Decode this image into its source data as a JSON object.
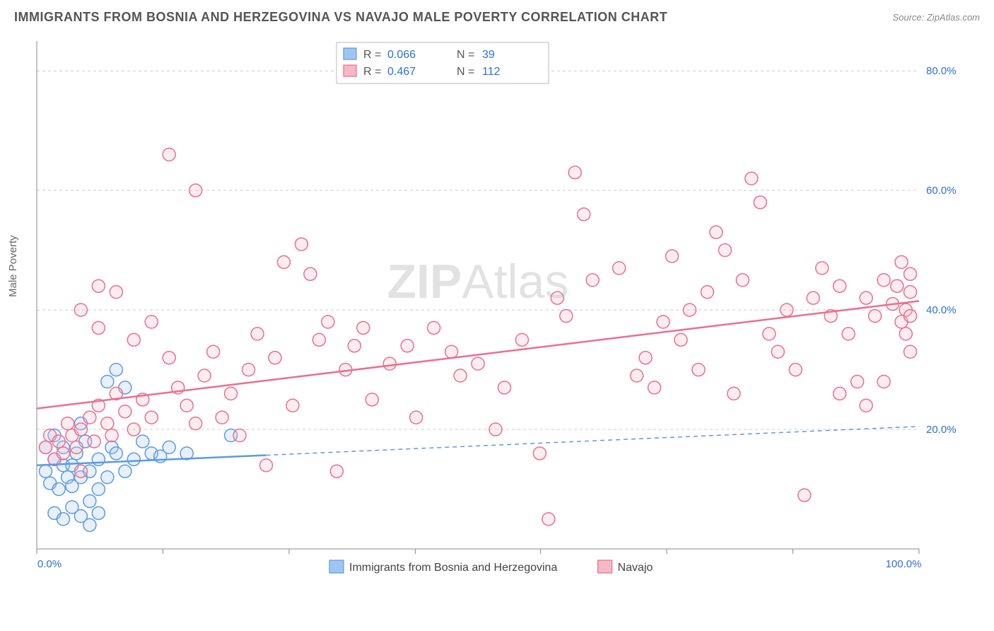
{
  "title": "IMMIGRANTS FROM BOSNIA AND HERZEGOVINA VS NAVAJO MALE POVERTY CORRELATION CHART",
  "source_label": "Source: ZipAtlas.com",
  "ylabel": "Male Poverty",
  "watermark_a": "ZIP",
  "watermark_b": "Atlas",
  "chart": {
    "type": "scatter",
    "xlim": [
      0,
      100
    ],
    "ylim": [
      0,
      85
    ],
    "x_ticks": [
      0,
      14.3,
      28.6,
      42.9,
      57.1,
      71.4,
      85.7,
      100
    ],
    "x_tick_labels_shown": {
      "0": "0.0%",
      "100": "100.0%"
    },
    "y_ticks": [
      20,
      40,
      60,
      80
    ],
    "y_tick_labels": [
      "20.0%",
      "40.0%",
      "60.0%",
      "80.0%"
    ],
    "background_color": "#ffffff",
    "grid_color": "#cccccc",
    "axis_color": "#888888",
    "marker_radius": 9,
    "series": [
      {
        "key": "a",
        "label": "Immigrants from Bosnia and Herzegovina",
        "color_fill": "#9fc5f3",
        "color_stroke": "#5a9be2",
        "R": "0.066",
        "N": "39",
        "trend": {
          "y_at_x0": 14.0,
          "y_at_x100": 20.5,
          "solid_until_x": 26
        },
        "points": [
          [
            1,
            13
          ],
          [
            1.5,
            11
          ],
          [
            1,
            17
          ],
          [
            2,
            15
          ],
          [
            2.5,
            10
          ],
          [
            2,
            19
          ],
          [
            3,
            14
          ],
          [
            3.5,
            12
          ],
          [
            3,
            17
          ],
          [
            4,
            10.5
          ],
          [
            4,
            14
          ],
          [
            4.5,
            16
          ],
          [
            5,
            12
          ],
          [
            5.5,
            18
          ],
          [
            2,
            6
          ],
          [
            3,
            5
          ],
          [
            4,
            7
          ],
          [
            5,
            5.5
          ],
          [
            6,
            4
          ],
          [
            7,
            6
          ],
          [
            6,
            13
          ],
          [
            7,
            15
          ],
          [
            8,
            12
          ],
          [
            8.5,
            17
          ],
          [
            9,
            16
          ],
          [
            10,
            13
          ],
          [
            11,
            15
          ],
          [
            12,
            18
          ],
          [
            13,
            16
          ],
          [
            14,
            15.5
          ],
          [
            15,
            17
          ],
          [
            17,
            16
          ],
          [
            8,
            28
          ],
          [
            9,
            30
          ],
          [
            10,
            27
          ],
          [
            7,
            10
          ],
          [
            6,
            8
          ],
          [
            22,
            19
          ],
          [
            5,
            21
          ]
        ]
      },
      {
        "key": "b",
        "label": "Navajo",
        "color_fill": "#f6b8c4",
        "color_stroke": "#ea6f8d",
        "R": "0.467",
        "N": "112",
        "trend": {
          "y_at_x0": 23.5,
          "y_at_x100": 41.5,
          "solid_until_x": 100
        },
        "points": [
          [
            1,
            17
          ],
          [
            1.5,
            19
          ],
          [
            2,
            15
          ],
          [
            2.5,
            18
          ],
          [
            3,
            16
          ],
          [
            3.5,
            21
          ],
          [
            4,
            19
          ],
          [
            4.5,
            17
          ],
          [
            5,
            20
          ],
          [
            5,
            13
          ],
          [
            6,
            22
          ],
          [
            6.5,
            18
          ],
          [
            7,
            24
          ],
          [
            8,
            21
          ],
          [
            8.5,
            19
          ],
          [
            9,
            26
          ],
          [
            10,
            23
          ],
          [
            11,
            20
          ],
          [
            12,
            25
          ],
          [
            13,
            22
          ],
          [
            7,
            37
          ],
          [
            9,
            43
          ],
          [
            11,
            35
          ],
          [
            13,
            38
          ],
          [
            15,
            32
          ],
          [
            16,
            27
          ],
          [
            17,
            24
          ],
          [
            18,
            21
          ],
          [
            19,
            29
          ],
          [
            20,
            33
          ],
          [
            5,
            40
          ],
          [
            7,
            44
          ],
          [
            15,
            66
          ],
          [
            18,
            60
          ],
          [
            21,
            22
          ],
          [
            22,
            26
          ],
          [
            23,
            19
          ],
          [
            24,
            30
          ],
          [
            25,
            36
          ],
          [
            26,
            14
          ],
          [
            27,
            32
          ],
          [
            28,
            48
          ],
          [
            29,
            24
          ],
          [
            30,
            51
          ],
          [
            31,
            46
          ],
          [
            32,
            35
          ],
          [
            33,
            38
          ],
          [
            34,
            13
          ],
          [
            35,
            30
          ],
          [
            36,
            34
          ],
          [
            37,
            37
          ],
          [
            38,
            25
          ],
          [
            40,
            31
          ],
          [
            42,
            34
          ],
          [
            43,
            22
          ],
          [
            45,
            37
          ],
          [
            47,
            33
          ],
          [
            48,
            29
          ],
          [
            50,
            31
          ],
          [
            52,
            20
          ],
          [
            53,
            27
          ],
          [
            55,
            35
          ],
          [
            57,
            16
          ],
          [
            58,
            5
          ],
          [
            59,
            42
          ],
          [
            60,
            39
          ],
          [
            61,
            63
          ],
          [
            62,
            56
          ],
          [
            63,
            45
          ],
          [
            66,
            47
          ],
          [
            68,
            29
          ],
          [
            69,
            32
          ],
          [
            70,
            27
          ],
          [
            71,
            38
          ],
          [
            72,
            49
          ],
          [
            73,
            35
          ],
          [
            74,
            40
          ],
          [
            75,
            30
          ],
          [
            76,
            43
          ],
          [
            77,
            53
          ],
          [
            78,
            50
          ],
          [
            79,
            26
          ],
          [
            80,
            45
          ],
          [
            81,
            62
          ],
          [
            82,
            58
          ],
          [
            83,
            36
          ],
          [
            84,
            33
          ],
          [
            85,
            40
          ],
          [
            86,
            30
          ],
          [
            87,
            9
          ],
          [
            88,
            42
          ],
          [
            89,
            47
          ],
          [
            90,
            39
          ],
          [
            91,
            44
          ],
          [
            92,
            36
          ],
          [
            93,
            28
          ],
          [
            94,
            42
          ],
          [
            95,
            39
          ],
          [
            96,
            45
          ],
          [
            97,
            41
          ],
          [
            97.5,
            44
          ],
          [
            98,
            38
          ],
          [
            98,
            48
          ],
          [
            98.5,
            40
          ],
          [
            98.5,
            36
          ],
          [
            99,
            43
          ],
          [
            99,
            46
          ],
          [
            99,
            39
          ],
          [
            99,
            33
          ],
          [
            94,
            24
          ],
          [
            96,
            28
          ],
          [
            91,
            26
          ]
        ]
      }
    ]
  },
  "rn_legend": {
    "box_stroke": "#bbbbbb",
    "entries": [
      {
        "swatch_fill": "#9fc5f3",
        "swatch_stroke": "#5a9be2",
        "R_label": "R =",
        "R_val": "0.066",
        "N_label": "N =",
        "N_val": "39"
      },
      {
        "swatch_fill": "#f6b8c4",
        "swatch_stroke": "#ea6f8d",
        "R_label": "R =",
        "R_val": "0.467",
        "N_label": "N =",
        "N_val": "112"
      }
    ]
  },
  "bottom_legend": {
    "entries": [
      {
        "swatch_fill": "#9fc5f3",
        "swatch_stroke": "#5a9be2",
        "label": "Immigrants from Bosnia and Herzegovina"
      },
      {
        "swatch_fill": "#f6b8c4",
        "swatch_stroke": "#ea6f8d",
        "label": "Navajo"
      }
    ]
  }
}
